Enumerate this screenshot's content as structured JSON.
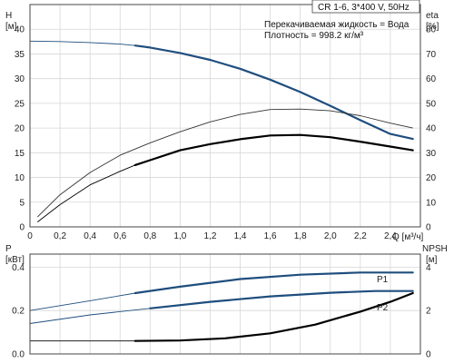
{
  "chart_data": [
    {
      "type": "line",
      "panel": "top",
      "model_label": "CR 1-6, 3*400 V, 50Hz",
      "info_lines": [
        "Перекачиваемая жидкость = Вода",
        "Плотность = 998.2 кг/м³"
      ],
      "x_axis": {
        "label": "Q [м³/ч]",
        "ticks": [
          "0",
          "0,2",
          "0,4",
          "0,6",
          "0,8",
          "1,0",
          "1,2",
          "1,4",
          "1,6",
          "1,8",
          "2,0",
          "2,2",
          "2,4"
        ],
        "range": [
          0,
          2.6
        ]
      },
      "y_left": {
        "label": "H",
        "unit": "[м]",
        "ticks": [
          "0",
          "5",
          "10",
          "15",
          "20",
          "25",
          "30",
          "35",
          "40"
        ],
        "range": [
          0,
          45
        ]
      },
      "y_right": {
        "label": "eta",
        "unit": "[%]",
        "ticks": [
          "0",
          "10",
          "20",
          "30",
          "40",
          "50",
          "60",
          "70",
          "80"
        ],
        "range": [
          0,
          90
        ]
      },
      "grid": true,
      "series": [
        {
          "axis": "left",
          "color": "#1f4e7e",
          "x": [
            0,
            0.2,
            0.4,
            0.6,
            0.7,
            0.8,
            1.0,
            1.2,
            1.4,
            1.6,
            1.8,
            2.0,
            2.2,
            2.4,
            2.55
          ],
          "y": [
            37.6,
            37.5,
            37.3,
            37.0,
            36.7,
            36.3,
            35.2,
            33.8,
            32.0,
            29.8,
            27.3,
            24.5,
            21.6,
            18.8,
            17.8
          ],
          "highlight_range": [
            0.7,
            2.55
          ]
        },
        {
          "axis": "right",
          "color": "#000000",
          "x": [
            0.05,
            0.2,
            0.4,
            0.6,
            0.7,
            0.8,
            1.0,
            1.2,
            1.4,
            1.6,
            1.8,
            2.0,
            2.2,
            2.4,
            2.55
          ],
          "y": [
            2,
            9,
            17,
            22.5,
            25,
            27,
            31,
            33.5,
            35.5,
            37,
            37.2,
            36.3,
            34.5,
            32.5,
            31
          ],
          "highlight_range": [
            0.7,
            2.55
          ]
        },
        {
          "axis": "right",
          "color": "#333333",
          "x": [
            0.05,
            0.2,
            0.4,
            0.6,
            0.8,
            1.0,
            1.2,
            1.4,
            1.6,
            1.8,
            2.0,
            2.2,
            2.4,
            2.55
          ],
          "y": [
            4,
            13,
            22,
            29,
            34,
            38.5,
            42.5,
            45.5,
            47.5,
            47.7,
            47,
            45,
            42,
            40
          ]
        }
      ]
    },
    {
      "type": "line",
      "panel": "bottom",
      "y_left": {
        "label": "P",
        "unit": "[кВт]",
        "ticks": [
          "0.0",
          "0.2",
          "0.4"
        ],
        "range": [
          0,
          0.46
        ]
      },
      "y_right": {
        "label": "NPSH",
        "unit": "[м]",
        "ticks": [
          "0",
          "2",
          "4"
        ],
        "range": [
          0,
          4.6
        ]
      },
      "x_range": [
        0,
        2.6
      ],
      "grid": true,
      "series": [
        {
          "name": "P1",
          "axis": "left",
          "color": "#1f4e7e",
          "x": [
            0,
            0.4,
            0.7,
            1.0,
            1.4,
            1.8,
            2.2,
            2.55
          ],
          "y": [
            0.2,
            0.245,
            0.28,
            0.31,
            0.345,
            0.365,
            0.375,
            0.375
          ],
          "highlight_range": [
            0.7,
            2.55
          ]
        },
        {
          "name": "P2",
          "axis": "left",
          "color": "#1f4e7e",
          "x": [
            0,
            0.4,
            0.8,
            1.2,
            1.6,
            2.0,
            2.3,
            2.55
          ],
          "y": [
            0.14,
            0.18,
            0.21,
            0.24,
            0.265,
            0.282,
            0.29,
            0.29
          ],
          "highlight_range": [
            0.7,
            2.55
          ]
        },
        {
          "axis": "right",
          "color": "#000000",
          "x": [
            0,
            0.4,
            0.7,
            1.0,
            1.3,
            1.6,
            1.9,
            2.2,
            2.4,
            2.55
          ],
          "y": [
            0.6,
            0.6,
            0.6,
            0.62,
            0.72,
            0.95,
            1.35,
            1.95,
            2.4,
            2.8
          ],
          "highlight_range": [
            0.7,
            2.55
          ]
        }
      ]
    }
  ]
}
